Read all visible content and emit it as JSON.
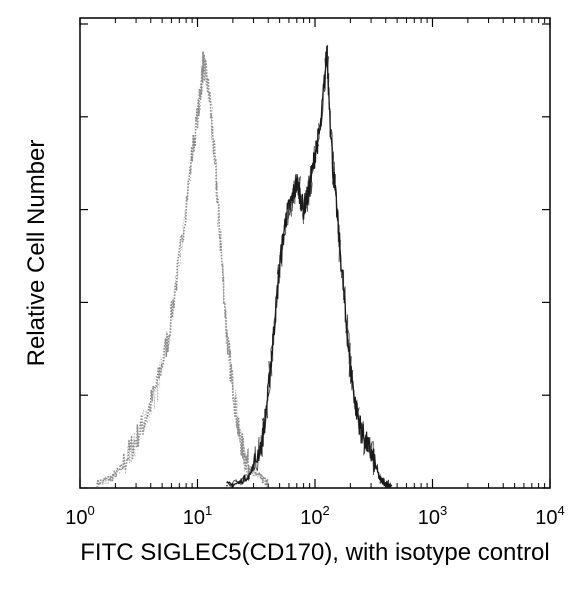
{
  "chart_data": {
    "type": "histogram",
    "title": "",
    "xlabel": "FITC SIGLEC5(CD170), with isotype control",
    "ylabel": "Relative Cell Number",
    "x_scale": "log",
    "xlim": [
      1,
      10000
    ],
    "ylim": [
      0,
      1.0
    ],
    "grid": false,
    "legend": "none",
    "x_ticks": [
      {
        "value": 1,
        "base": "10",
        "exp": "0"
      },
      {
        "value": 10,
        "base": "10",
        "exp": "1"
      },
      {
        "value": 100,
        "base": "10",
        "exp": "2"
      },
      {
        "value": 1000,
        "base": "10",
        "exp": "3"
      },
      {
        "value": 10000,
        "base": "10",
        "exp": "4"
      }
    ],
    "y_ticks": [
      0,
      0.2,
      0.4,
      0.6,
      0.8,
      1.0
    ],
    "series": [
      {
        "style": "dotted",
        "color": "#8a8a8a",
        "x": [
          1.4,
          1.8,
          2.2,
          2.8,
          3.5,
          4.5,
          5.6,
          7.1,
          8.9,
          10.5,
          11.2,
          12.6,
          14.1,
          15.8,
          17.8,
          20.0,
          22.4,
          25.1,
          28.2,
          31.6,
          35.5,
          39.8
        ],
        "y": [
          0.01,
          0.02,
          0.04,
          0.09,
          0.14,
          0.22,
          0.32,
          0.5,
          0.71,
          0.84,
          0.92,
          0.85,
          0.7,
          0.52,
          0.33,
          0.22,
          0.12,
          0.07,
          0.04,
          0.03,
          0.02,
          0.01
        ]
      },
      {
        "style": "solid",
        "color": "#1a1a1a",
        "x": [
          17.8,
          22.4,
          28.2,
          35.5,
          39.8,
          44.7,
          50.1,
          56.2,
          63.1,
          70.8,
          79.4,
          89.1,
          100,
          112,
          126,
          141,
          158,
          178,
          200,
          224,
          251,
          282,
          316,
          355,
          398,
          447
        ],
        "y": [
          0.005,
          0.01,
          0.03,
          0.1,
          0.2,
          0.34,
          0.48,
          0.58,
          0.62,
          0.66,
          0.6,
          0.64,
          0.72,
          0.78,
          0.94,
          0.7,
          0.56,
          0.4,
          0.26,
          0.17,
          0.12,
          0.09,
          0.06,
          0.02,
          0.01,
          0.005
        ]
      }
    ]
  }
}
